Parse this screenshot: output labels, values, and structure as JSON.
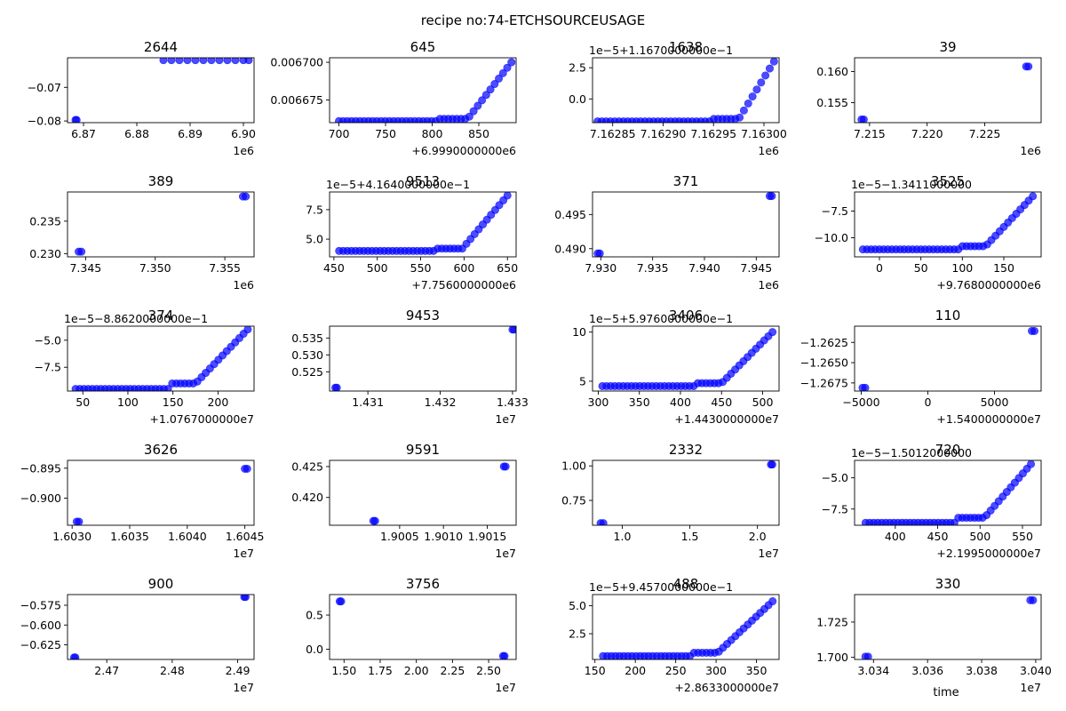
{
  "figure": {
    "suptitle": "recipe no:74-ETCHSOURCEUSAGE",
    "shared_xlabel": "time",
    "marker_color": "#0000ff"
  },
  "chart_data": [
    {
      "type": "scatter",
      "title": "2644",
      "xlim": [
        6867000,
        6902000
      ],
      "ylim": [
        -0.0805,
        -0.0612
      ],
      "xticks": [
        6870000,
        6880000,
        6890000,
        6900000
      ],
      "xticklabels": [
        "6.87",
        "6.88",
        "6.89",
        "6.90"
      ],
      "xoffset": "1e6",
      "yticks": [
        -0.07,
        -0.08
      ],
      "yticklabels": [
        "−0.07",
        "−0.08"
      ],
      "yoffset": "",
      "points": [
        [
          6868500,
          -0.0797
        ],
        [
          6868700,
          -0.0797
        ],
        [
          6885000,
          -0.0619
        ],
        [
          6886500,
          -0.0619
        ],
        [
          6888000,
          -0.0619
        ],
        [
          6889500,
          -0.0619
        ],
        [
          6891000,
          -0.0619
        ],
        [
          6892500,
          -0.0619
        ],
        [
          6894000,
          -0.0619
        ],
        [
          6895500,
          -0.0619
        ],
        [
          6897000,
          -0.0619
        ],
        [
          6898500,
          -0.0619
        ],
        [
          6900000,
          -0.0619
        ],
        [
          6901000,
          -0.0619
        ]
      ]
    },
    {
      "type": "scatter",
      "title": "645",
      "xlim": [
        690,
        890
      ],
      "ylim": [
        0.00666,
        0.006703
      ],
      "xticks": [
        700,
        750,
        800,
        850
      ],
      "xticklabels": [
        "700",
        "750",
        "800",
        "850"
      ],
      "xoffset": "+6.9990000000e6",
      "yticks": [
        0.0067,
        0.006675
      ],
      "yticklabels": [
        "0.006700",
        "0.006675"
      ],
      "yoffset": "",
      "series": "ramp",
      "ramp": {
        "x0": 700,
        "x1": 885,
        "xflat": 808,
        "xstep": 838,
        "ylo": 0.006661,
        "ystep": 0.0066625,
        "yhi": 0.0067,
        "n": 42
      }
    },
    {
      "type": "scatter",
      "title": "1638",
      "xlim": [
        7162830,
        7163015
      ],
      "ylim": [
        -1.9,
        3.3
      ],
      "xticks": [
        7162850,
        7162900,
        7162950,
        7163000
      ],
      "xticklabels": [
        "7.16285",
        "7.16290",
        "7.16295",
        "7.16300"
      ],
      "xoffset": "1e6",
      "yticks": [
        2.5,
        0.0
      ],
      "yticklabels": [
        "2.5",
        "0.0"
      ],
      "yoffset": "1e−5+1.1670000000e−1",
      "series": "ramp",
      "ramp": {
        "x0": 7162835,
        "x1": 7163010,
        "xflat": 7162950,
        "xstep": 7162975,
        "ylo": -1.8,
        "ystep": -1.6,
        "yhi": 3.0,
        "n": 42
      }
    },
    {
      "type": "scatter",
      "title": "39",
      "xlim": [
        7213700,
        7229900
      ],
      "ylim": [
        0.1518,
        0.1622
      ],
      "xticks": [
        7215000,
        7220000,
        7225000
      ],
      "xticklabels": [
        "7.215",
        "7.220",
        "7.225"
      ],
      "xoffset": "1e6",
      "yticks": [
        0.16,
        0.155
      ],
      "yticklabels": [
        "0.160",
        "0.155"
      ],
      "yoffset": "",
      "points": [
        [
          7214300,
          0.1523
        ],
        [
          7214500,
          0.1523
        ],
        [
          7228600,
          0.1608
        ],
        [
          7228800,
          0.1608
        ]
      ]
    },
    {
      "type": "scatter",
      "title": "389",
      "xlim": [
        7343700,
        7357100
      ],
      "ylim": [
        0.2295,
        0.2395
      ],
      "xticks": [
        7345000,
        7350000,
        7355000
      ],
      "xticklabels": [
        "7.345",
        "7.350",
        "7.355"
      ],
      "xoffset": "1e6",
      "yticks": [
        0.235,
        0.23
      ],
      "yticklabels": [
        "0.235",
        "0.230"
      ],
      "yoffset": "",
      "points": [
        [
          7344500,
          0.2303
        ],
        [
          7344700,
          0.2303
        ],
        [
          7356300,
          0.2388
        ],
        [
          7356500,
          0.2388
        ]
      ]
    },
    {
      "type": "scatter",
      "title": "9513",
      "xlim": [
        445,
        660
      ],
      "ylim": [
        3.5,
        9.0
      ],
      "xticks": [
        450,
        500,
        550,
        600,
        650
      ],
      "xticklabels": [
        "450",
        "500",
        "550",
        "600",
        "650"
      ],
      "xoffset": "+7.7560000000e6",
      "yticks": [
        7.5,
        5.0
      ],
      "yticklabels": [
        "7.5",
        "5.0"
      ],
      "yoffset": "1e−5+4.1640000000e−1",
      "series": "ramp",
      "ramp": {
        "x0": 456,
        "x1": 650,
        "xflat": 568,
        "xstep": 598,
        "ylo": 4.0,
        "ystep": 4.2,
        "yhi": 8.7,
        "n": 42
      }
    },
    {
      "type": "scatter",
      "title": "371",
      "xlim": [
        7929200,
        7947200
      ],
      "ylim": [
        0.4888,
        0.4983
      ],
      "xticks": [
        7930000,
        7935000,
        7940000,
        7945000
      ],
      "xticklabels": [
        "7.930",
        "7.935",
        "7.940",
        "7.945"
      ],
      "xoffset": "1e6",
      "yticks": [
        0.495,
        0.49
      ],
      "yticklabels": [
        "0.495",
        "0.490"
      ],
      "yoffset": "",
      "points": [
        [
          7929700,
          0.4893
        ],
        [
          7929900,
          0.4893
        ],
        [
          7946300,
          0.4977
        ],
        [
          7946500,
          0.4977
        ]
      ]
    },
    {
      "type": "scatter",
      "title": "3525",
      "xlim": [
        -30,
        195
      ],
      "ylim": [
        -11.8,
        -5.7
      ],
      "xticks": [
        0,
        50,
        100,
        150
      ],
      "xticklabels": [
        "0",
        "50",
        "100",
        "150"
      ],
      "xoffset": "+9.7680000000e6",
      "yticks": [
        -7.5,
        -10.0
      ],
      "yticklabels": [
        "−7.5",
        "−10.0"
      ],
      "yoffset": "1e−5−1.3411000000",
      "series": "ramp",
      "ramp": {
        "x0": -20,
        "x1": 185,
        "xflat": 98,
        "xstep": 128,
        "ylo": -11.1,
        "ystep": -10.8,
        "yhi": -6.1,
        "n": 42
      }
    },
    {
      "type": "scatter",
      "title": "374",
      "xlim": [
        33,
        240
      ],
      "ylim": [
        -9.7,
        -3.7
      ],
      "xticks": [
        50,
        100,
        150,
        200
      ],
      "xticklabels": [
        "50",
        "100",
        "150",
        "200"
      ],
      "xoffset": "+1.0767000000e7",
      "yticks": [
        -5.0,
        -7.5
      ],
      "yticklabels": [
        "−5.0",
        "−7.5"
      ],
      "yoffset": "1e−5−8.8620000000e−1",
      "series": "ramp",
      "ramp": {
        "x0": 42,
        "x1": 233,
        "xflat": 145,
        "xstep": 175,
        "ylo": -9.5,
        "ystep": -9.0,
        "yhi": -4.0,
        "n": 42
      }
    },
    {
      "type": "scatter",
      "title": "9453",
      "xlim": [
        14304700,
        14330500
      ],
      "ylim": [
        0.5193,
        0.5385
      ],
      "xticks": [
        14310000,
        14320000,
        14330000
      ],
      "xticklabels": [
        "1.431",
        "1.432",
        "1.433"
      ],
      "xoffset": "1e7",
      "yticks": [
        0.535,
        0.53,
        0.525
      ],
      "yticklabels": [
        "0.535",
        "0.530",
        "0.525"
      ],
      "yoffset": "",
      "points": [
        [
          14305500,
          0.5203
        ],
        [
          14305700,
          0.5203
        ],
        [
          14330000,
          0.5375
        ],
        [
          14330200,
          0.5375
        ]
      ]
    },
    {
      "type": "scatter",
      "title": "3406",
      "xlim": [
        293,
        520
      ],
      "ylim": [
        4.0,
        10.6
      ],
      "xticks": [
        300,
        350,
        400,
        450,
        500
      ],
      "xticklabels": [
        "300",
        "350",
        "400",
        "450",
        "500"
      ],
      "xoffset": "+1.4430000000e7",
      "yticks": [
        10,
        5
      ],
      "yticklabels": [
        "10",
        "5"
      ],
      "yoffset": "1e−5+5.9760000000e−1",
      "series": "ramp",
      "ramp": {
        "x0": 305,
        "x1": 512,
        "xflat": 420,
        "xstep": 450,
        "ylo": 4.5,
        "ystep": 4.8,
        "yhi": 10.0,
        "n": 42
      }
    },
    {
      "type": "scatter",
      "title": "110",
      "xlim": [
        -5500,
        8500
      ],
      "ylim": [
        -1.2685,
        -1.2605
      ],
      "xticks": [
        -5000,
        0,
        5000
      ],
      "xticklabels": [
        "−5000",
        "0",
        "5000"
      ],
      "xoffset": "+1.5400000000e7",
      "yticks": [
        -1.2625,
        -1.265,
        -1.2675
      ],
      "yticklabels": [
        "−1.2625",
        "−1.2650",
        "−1.2675"
      ],
      "yoffset": "",
      "points": [
        [
          -4900,
          -1.2681
        ],
        [
          -4700,
          -1.2681
        ],
        [
          7800,
          -1.2611
        ],
        [
          8000,
          -1.2611
        ]
      ]
    },
    {
      "type": "scatter",
      "title": "3626",
      "xlim": [
        16029600,
        16045800
      ],
      "ylim": [
        -0.9045,
        -0.8937
      ],
      "xticks": [
        16030000,
        16035000,
        16040000,
        16045000
      ],
      "xticklabels": [
        "1.6030",
        "1.6035",
        "1.6040",
        "1.6045"
      ],
      "xoffset": "1e7",
      "yticks": [
        -0.895,
        -0.9
      ],
      "yticklabels": [
        "−0.895",
        "−0.900"
      ],
      "yoffset": "",
      "points": [
        [
          16030400,
          -0.9039
        ],
        [
          16030600,
          -0.9039
        ],
        [
          16045000,
          -0.8951
        ],
        [
          16045200,
          -0.8951
        ]
      ]
    },
    {
      "type": "scatter",
      "title": "9591",
      "xlim": [
        18997000,
        19018300
      ],
      "ylim": [
        0.4155,
        0.426
      ],
      "xticks": [
        19005000,
        19010000,
        19015000
      ],
      "xticklabels": [
        "1.9005",
        "1.9010",
        "1.9015"
      ],
      "xoffset": "1e7",
      "yticks": [
        0.425,
        0.42
      ],
      "yticklabels": [
        "0.425",
        "0.420"
      ],
      "yoffset": "",
      "points": [
        [
          19002000,
          0.4162
        ],
        [
          19002200,
          0.4162
        ],
        [
          19016900,
          0.425
        ],
        [
          19017100,
          0.425
        ]
      ]
    },
    {
      "type": "scatter",
      "title": "2332",
      "xlim": [
        7800000,
        21600000
      ],
      "ylim": [
        0.57,
        1.04
      ],
      "xticks": [
        10000000,
        15000000,
        20000000
      ],
      "xticklabels": [
        "1.0",
        "1.5",
        "2.0"
      ],
      "xoffset": "1e7",
      "yticks": [
        1.0,
        0.75
      ],
      "yticklabels": [
        "1.00",
        "0.75"
      ],
      "yoffset": "",
      "points": [
        [
          8400000,
          0.585
        ],
        [
          8600000,
          0.585
        ],
        [
          21000000,
          1.01
        ],
        [
          21100000,
          1.01
        ]
      ]
    },
    {
      "type": "scatter",
      "title": "720",
      "xlim": [
        352,
        572
      ],
      "ylim": [
        -8.8,
        -3.6
      ],
      "xticks": [
        400,
        450,
        500,
        550
      ],
      "xticklabels": [
        "400",
        "450",
        "500",
        "550"
      ],
      "xoffset": "+2.1995000000e7",
      "yticks": [
        -5.0,
        -7.5
      ],
      "yticklabels": [
        "−5.0",
        "−7.5"
      ],
      "yoffset": "1e−5−1.5012000000",
      "series": "ramp",
      "ramp": {
        "x0": 365,
        "x1": 560,
        "xflat": 470,
        "xstep": 505,
        "ylo": -8.6,
        "ystep": -8.2,
        "yhi": -3.9,
        "n": 42
      }
    },
    {
      "type": "scatter",
      "title": "900",
      "xlim": [
        24640000,
        24925000
      ],
      "ylim": [
        -0.6435,
        -0.5615
      ],
      "xticks": [
        24700000,
        24800000,
        24900000
      ],
      "xticklabels": [
        "2.47",
        "2.48",
        "2.49"
      ],
      "xoffset": "1e7",
      "yticks": [
        -0.575,
        -0.6,
        -0.625
      ],
      "yticklabels": [
        "−0.575",
        "−0.600",
        "−0.625"
      ],
      "yoffset": "",
      "points": [
        [
          24650000,
          -0.641
        ],
        [
          24652000,
          -0.641
        ],
        [
          24910000,
          -0.5645
        ],
        [
          24912000,
          -0.5645
        ]
      ]
    },
    {
      "type": "scatter",
      "title": "3756",
      "xlim": [
        14000000,
        26900000
      ],
      "ylim": [
        -0.15,
        0.8
      ],
      "xticks": [
        15000000,
        17500000,
        20000000,
        22500000,
        25000000
      ],
      "xticklabels": [
        "1.50",
        "1.75",
        "2.00",
        "2.25",
        "2.50"
      ],
      "xoffset": "1e7",
      "yticks": [
        0.5,
        0.0
      ],
      "yticklabels": [
        "0.5",
        "0.0"
      ],
      "yoffset": "",
      "points": [
        [
          14700000,
          0.7
        ],
        [
          14800000,
          0.7
        ],
        [
          26000000,
          -0.1
        ],
        [
          26100000,
          -0.1
        ]
      ]
    },
    {
      "type": "scatter",
      "title": "488",
      "xlim": [
        147,
        378
      ],
      "ylim": [
        0.2,
        6.0
      ],
      "xticks": [
        150,
        200,
        250,
        300,
        350
      ],
      "xticklabels": [
        "150",
        "200",
        "250",
        "300",
        "350"
      ],
      "xoffset": "+2.8633000000e7",
      "yticks": [
        5.0,
        2.5
      ],
      "yticklabels": [
        "5.0",
        "2.5"
      ],
      "yoffset": "1e−5+9.4570000000e−1",
      "series": "ramp",
      "ramp": {
        "x0": 160,
        "x1": 370,
        "xflat": 270,
        "xstep": 302,
        "ylo": 0.5,
        "ystep": 0.8,
        "yhi": 5.4,
        "n": 42
      }
    },
    {
      "type": "scatter",
      "title": "330",
      "xlim": [
        30333000,
        30402000
      ],
      "ylim": [
        1.6985,
        1.7445
      ],
      "xticks": [
        30340000,
        30360000,
        30380000,
        30400000
      ],
      "xticklabels": [
        "3.034",
        "3.036",
        "3.038",
        "3.040"
      ],
      "xoffset": "1e7",
      "yticks": [
        1.725,
        1.7
      ],
      "yticklabels": [
        "1.725",
        "1.700"
      ],
      "yoffset": "",
      "points": [
        [
          30337000,
          1.7005
        ],
        [
          30338000,
          1.7005
        ],
        [
          30398000,
          1.7405
        ],
        [
          30399000,
          1.7405
        ]
      ]
    }
  ]
}
